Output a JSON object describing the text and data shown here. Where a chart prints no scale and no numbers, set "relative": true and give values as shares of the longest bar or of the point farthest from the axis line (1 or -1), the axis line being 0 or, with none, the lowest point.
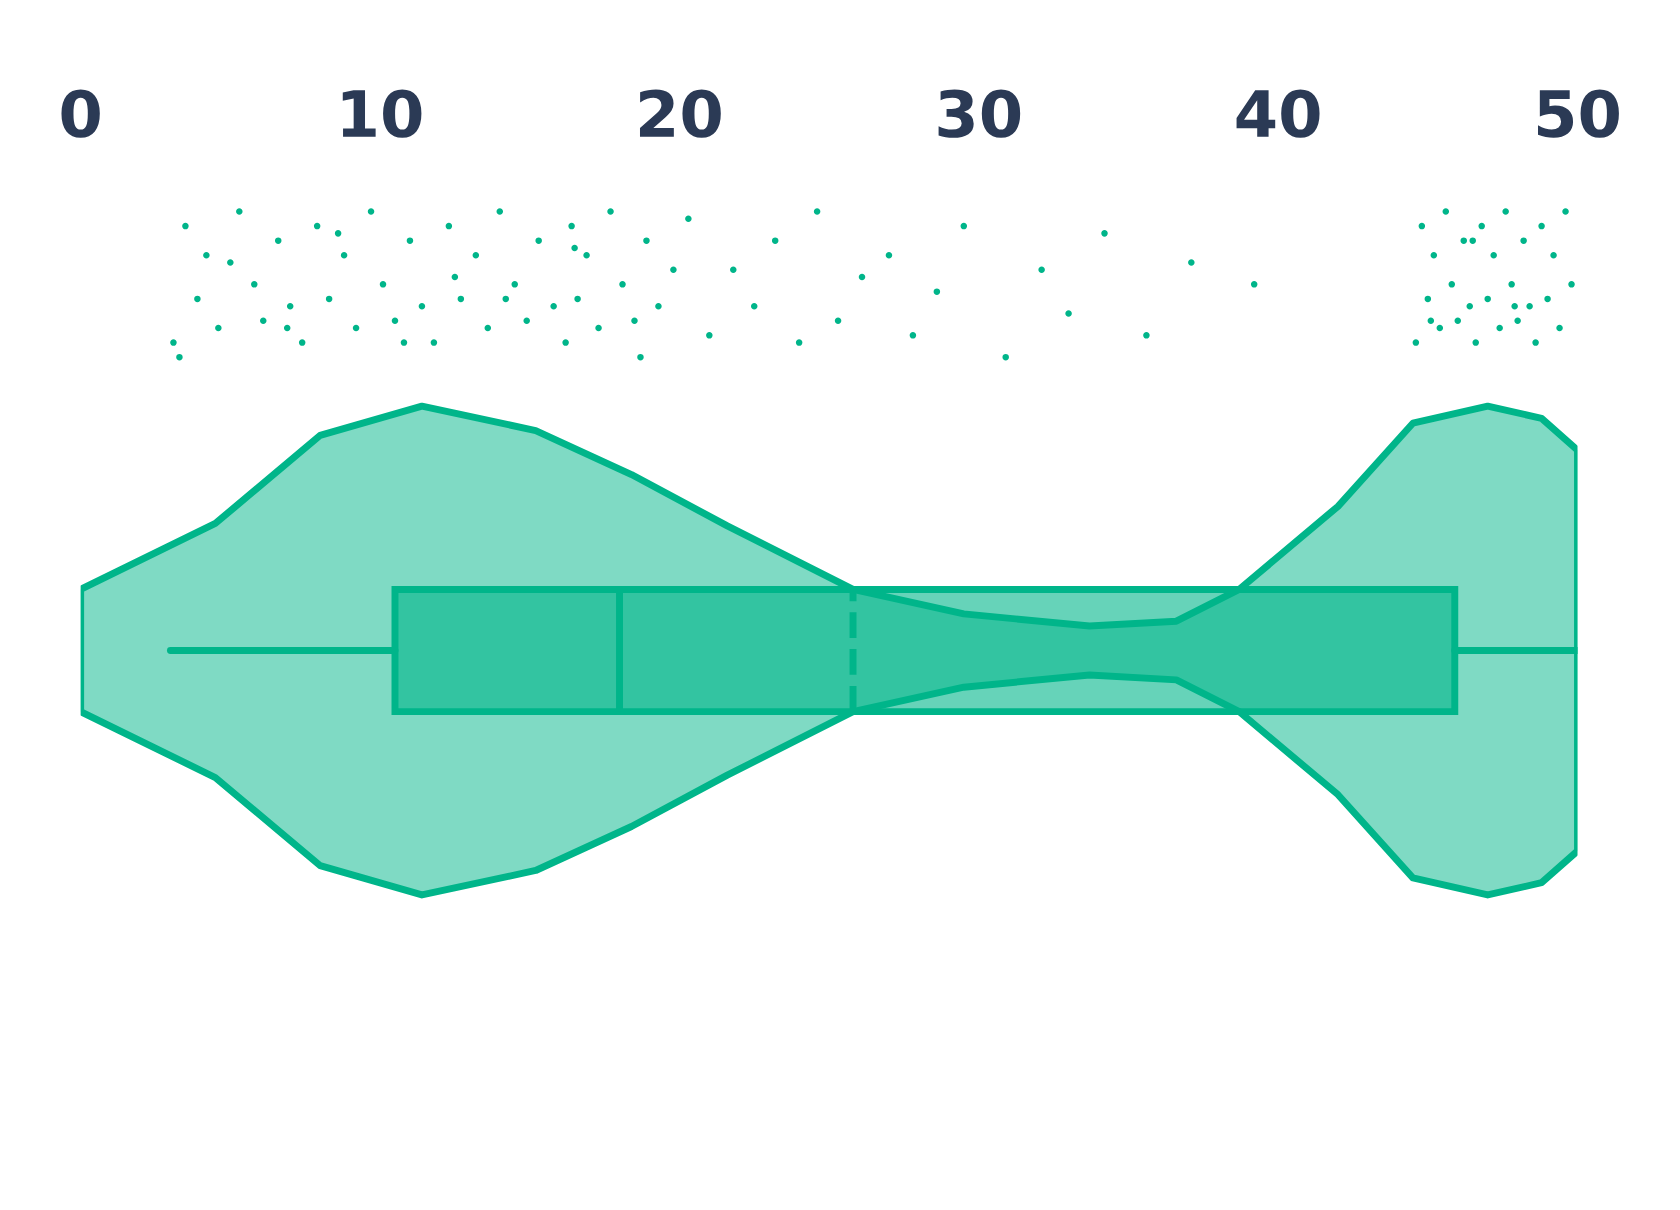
{
  "chart_data": [
    {
      "type": "box",
      "orientation": "horizontal",
      "categories": [
        null
      ],
      "grid": false,
      "xlim": [
        0,
        50
      ],
      "xticks": [
        0,
        10,
        20,
        30,
        40,
        50
      ],
      "tick_labels": "x",
      "boxes": [
        {
          "low": 3,
          "q1": 10.5,
          "median": 18,
          "q3": 45.9,
          "high": 50,
          "mean": 25.8
        }
      ],
      "color": "#00b58a"
    },
    {
      "type": "scatter",
      "relative": true,
      "xlim": [
        0,
        50
      ],
      "tick_labels": false,
      "color": "#00b58a",
      "x": [
        3.1,
        3.5,
        3.9,
        4.2,
        4.6,
        5.3,
        5.8,
        6.1,
        6.6,
        7.0,
        7.4,
        7.9,
        8.3,
        8.8,
        9.2,
        9.7,
        10.1,
        10.5,
        11.0,
        11.4,
        11.8,
        12.3,
        12.7,
        13.2,
        13.6,
        14.0,
        14.5,
        14.9,
        15.3,
        15.8,
        16.2,
        16.4,
        16.6,
        16.9,
        17.3,
        17.7,
        18.1,
        18.5,
        18.9,
        19.3,
        19.8,
        3.3,
        5.0,
        6.9,
        8.6,
        10.8,
        12.5,
        14.2,
        16.5,
        18.7,
        20.3,
        21.0,
        21.8,
        22.5,
        23.2,
        24.0,
        24.6,
        25.3,
        26.1,
        27.0,
        27.8,
        28.6,
        29.5,
        30.9,
        32.1,
        33.0,
        34.2,
        35.6,
        37.1,
        39.2,
        44.6,
        44.8,
        45.0,
        45.2,
        45.4,
        45.6,
        45.8,
        46.0,
        46.2,
        46.4,
        46.6,
        46.8,
        47.0,
        47.2,
        47.4,
        47.6,
        47.8,
        48.0,
        48.2,
        48.4,
        48.6,
        48.8,
        49.0,
        49.2,
        49.4,
        49.6,
        49.8,
        45.1,
        46.5,
        47.9
      ],
      "values": [
        0.1,
        0.9,
        0.4,
        0.7,
        0.2,
        1.0,
        0.5,
        0.25,
        0.8,
        0.35,
        0.1,
        0.9,
        0.4,
        0.7,
        0.2,
        1.0,
        0.5,
        0.25,
        0.8,
        0.35,
        0.1,
        0.9,
        0.4,
        0.7,
        0.2,
        1.0,
        0.5,
        0.25,
        0.8,
        0.35,
        0.1,
        0.9,
        0.4,
        0.7,
        0.2,
        1.0,
        0.5,
        0.25,
        0.8,
        0.35,
        0.6,
        0.0,
        0.65,
        0.2,
        0.85,
        0.1,
        0.55,
        0.4,
        0.75,
        0.0,
        0.95,
        0.15,
        0.6,
        0.35,
        0.8,
        0.1,
        1.0,
        0.25,
        0.55,
        0.7,
        0.15,
        0.45,
        0.9,
        0.0,
        0.6,
        0.3,
        0.85,
        0.15,
        0.65,
        0.5,
        0.1,
        0.9,
        0.4,
        0.7,
        0.2,
        1.0,
        0.5,
        0.25,
        0.8,
        0.35,
        0.1,
        0.9,
        0.4,
        0.7,
        0.2,
        1.0,
        0.5,
        0.25,
        0.8,
        0.35,
        0.1,
        0.9,
        0.4,
        0.7,
        0.2,
        1.0,
        0.5,
        0.25,
        0.8,
        0.35
      ]
    },
    {
      "type": "area",
      "relative": true,
      "xlim": [
        0,
        50
      ],
      "tick_labels": false,
      "color": "#00b58a",
      "x": [
        0,
        4.5,
        8,
        11.4,
        15.2,
        18.4,
        21.6,
        25.8,
        29.5,
        33.7,
        36.6,
        38.7,
        42,
        44.5,
        47,
        48.8,
        50
      ],
      "values": [
        0.25,
        0.52,
        0.88,
        1,
        0.9,
        0.72,
        0.51,
        0.25,
        0.15,
        0.1,
        0.12,
        0.25,
        0.59,
        0.93,
        1,
        0.95,
        0.82
      ]
    }
  ]
}
